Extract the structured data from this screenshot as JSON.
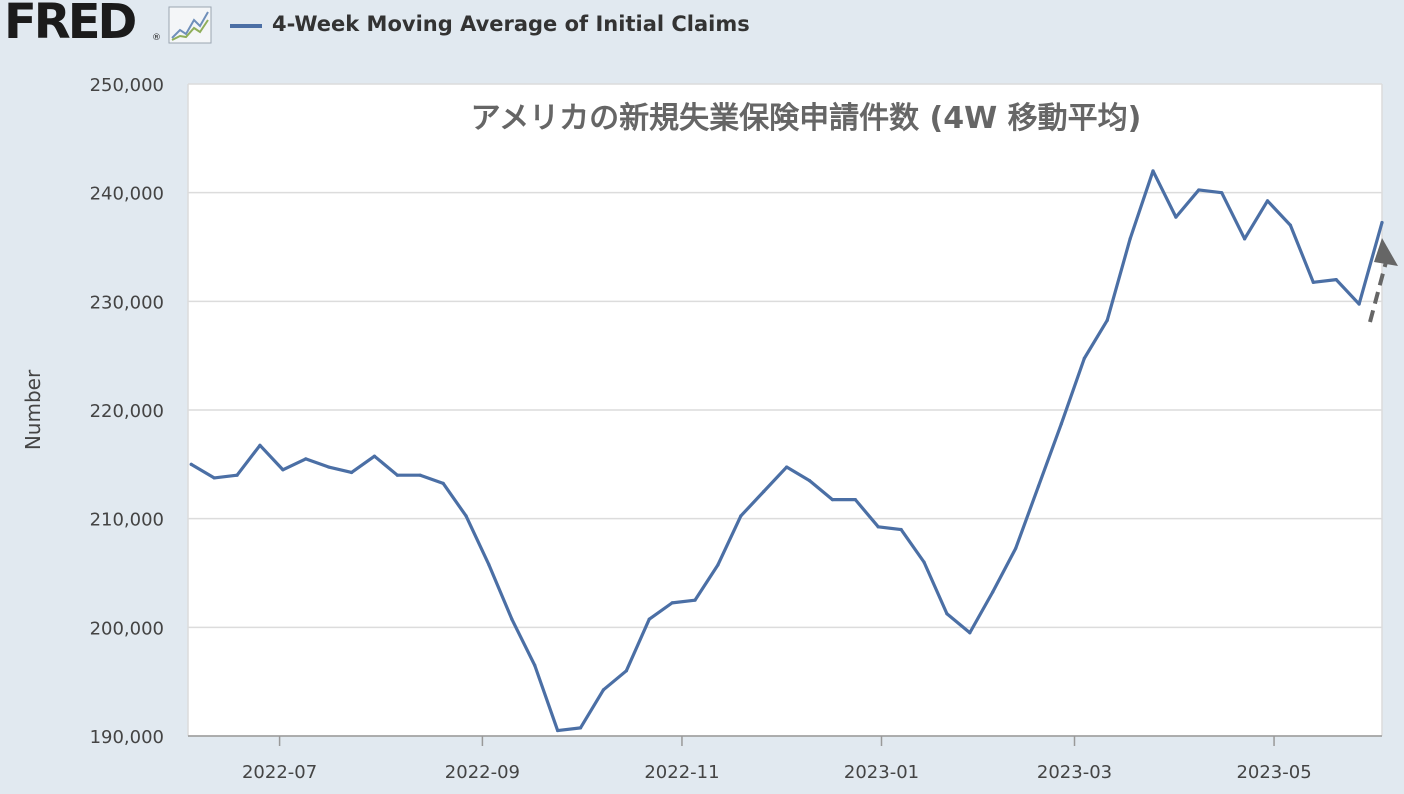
{
  "header": {
    "logo_text": "FRED",
    "logo_reg": "®",
    "logo_icon": "line-chart-icon",
    "legend_label": "4-Week Moving Average of Initial Claims",
    "legend_color": "#4b6fa5"
  },
  "chart_data": {
    "type": "line",
    "title": "アメリカの新規失業保険申請件数 (4W 移動平均)",
    "xlabel": "",
    "ylabel": "Number",
    "ylim": [
      190000,
      250000
    ],
    "y_ticks": [
      190000,
      200000,
      210000,
      220000,
      230000,
      240000,
      250000
    ],
    "y_tick_labels": [
      "190,000",
      "200,000",
      "210,000",
      "220,000",
      "230,000",
      "240,000",
      "250,000"
    ],
    "x_range": [
      "2022-06-03",
      "2023-06-03"
    ],
    "x_ticks": [
      "2022-07-01",
      "2022-09-01",
      "2022-11-01",
      "2023-01-01",
      "2023-03-01",
      "2023-05-01"
    ],
    "x_tick_labels": [
      "2022-07",
      "2022-09",
      "2022-11",
      "2023-01",
      "2023-03",
      "2023-05"
    ],
    "grid": true,
    "annotation": "dashed upward arrow near latest value",
    "series": [
      {
        "color": "#4b6fa5",
        "x": [
          "2022-06-04",
          "2022-06-11",
          "2022-06-18",
          "2022-06-25",
          "2022-07-02",
          "2022-07-09",
          "2022-07-16",
          "2022-07-23",
          "2022-07-30",
          "2022-08-06",
          "2022-08-13",
          "2022-08-20",
          "2022-08-27",
          "2022-09-03",
          "2022-09-10",
          "2022-09-17",
          "2022-09-24",
          "2022-10-01",
          "2022-10-08",
          "2022-10-15",
          "2022-10-22",
          "2022-10-29",
          "2022-11-05",
          "2022-11-12",
          "2022-11-19",
          "2022-11-26",
          "2022-12-03",
          "2022-12-10",
          "2022-12-17",
          "2022-12-24",
          "2022-12-31",
          "2023-01-07",
          "2023-01-14",
          "2023-01-21",
          "2023-01-28",
          "2023-02-04",
          "2023-02-11",
          "2023-02-18",
          "2023-02-25",
          "2023-03-04",
          "2023-03-11",
          "2023-03-18",
          "2023-03-25",
          "2023-04-01",
          "2023-04-08",
          "2023-04-15",
          "2023-04-22",
          "2023-04-29",
          "2023-05-06",
          "2023-05-13",
          "2023-05-20",
          "2023-05-27",
          "2023-06-03"
        ],
        "y": [
          215000,
          213750,
          214000,
          216750,
          214500,
          215500,
          214750,
          214250,
          215750,
          214000,
          214000,
          213250,
          210250,
          205750,
          200750,
          196500,
          190500,
          190750,
          194250,
          196000,
          200750,
          202250,
          202500,
          205750,
          210250,
          212500,
          214750,
          213500,
          211750,
          211750,
          209250,
          209000,
          206000,
          201250,
          199500,
          203250,
          207250,
          213000,
          218750,
          224750,
          228250,
          235750,
          242000,
          237750,
          240250,
          240000,
          235750,
          239250,
          237000,
          231750,
          232000,
          229750,
          237250
        ]
      }
    ]
  }
}
